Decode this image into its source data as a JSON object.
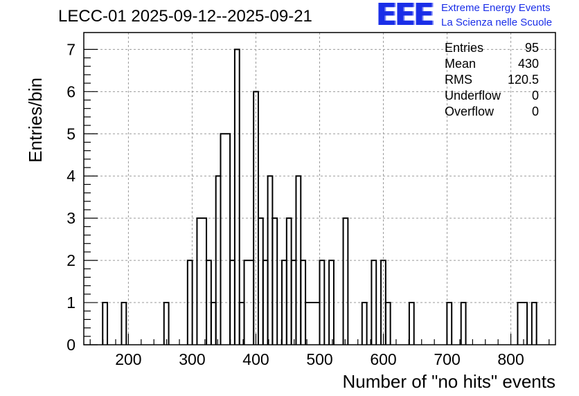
{
  "header": {
    "title": "LECC-01 2025-09-12--2025-09-21",
    "logo_text": "EEE",
    "logo_line1": "Extreme Energy Events",
    "logo_line2": "La Scienza nelle Scuole"
  },
  "stats": [
    {
      "label": "Entries",
      "value": "95"
    },
    {
      "label": "Mean",
      "value": "430"
    },
    {
      "label": "RMS",
      "value": "120.5"
    },
    {
      "label": "Underflow",
      "value": "0"
    },
    {
      "label": "Overflow",
      "value": "0"
    }
  ],
  "colors": {
    "accent": "#1a2ee8",
    "grid": "#9a9a9a",
    "line": "#000000"
  },
  "chart_data": {
    "type": "bar",
    "title": "LECC-01 2025-09-12--2025-09-21",
    "xlabel": "Number of \"no hits\" events",
    "ylabel": "Entries/bin",
    "xlim": [
      130,
      870
    ],
    "ylim": [
      0,
      7.4
    ],
    "bin_width": 7.4,
    "grid": true,
    "x_ticks": [
      200,
      300,
      400,
      500,
      600,
      700,
      800
    ],
    "y_ticks": [
      0,
      1,
      2,
      3,
      4,
      5,
      6,
      7
    ],
    "bins": [
      {
        "x0": 159.6,
        "x1": 167.0,
        "y": 1
      },
      {
        "x0": 189.2,
        "x1": 196.6,
        "y": 1
      },
      {
        "x0": 255.8,
        "x1": 263.2,
        "y": 1
      },
      {
        "x0": 292.8,
        "x1": 300.2,
        "y": 2
      },
      {
        "x0": 307.6,
        "x1": 322.4,
        "y": 3
      },
      {
        "x0": 322.4,
        "x1": 329.8,
        "y": 2
      },
      {
        "x0": 329.8,
        "x1": 337.2,
        "y": 1
      },
      {
        "x0": 337.2,
        "x1": 344.6,
        "y": 4
      },
      {
        "x0": 344.6,
        "x1": 359.4,
        "y": 5
      },
      {
        "x0": 359.4,
        "x1": 366.8,
        "y": 2
      },
      {
        "x0": 366.8,
        "x1": 374.2,
        "y": 7
      },
      {
        "x0": 374.2,
        "x1": 381.6,
        "y": 1
      },
      {
        "x0": 381.6,
        "x1": 396.4,
        "y": 2
      },
      {
        "x0": 396.4,
        "x1": 403.8,
        "y": 6
      },
      {
        "x0": 403.8,
        "x1": 411.2,
        "y": 3
      },
      {
        "x0": 411.2,
        "x1": 418.6,
        "y": 2
      },
      {
        "x0": 418.6,
        "x1": 426.0,
        "y": 4
      },
      {
        "x0": 426.0,
        "x1": 433.4,
        "y": 3
      },
      {
        "x0": 440.8,
        "x1": 448.2,
        "y": 2
      },
      {
        "x0": 448.2,
        "x1": 455.6,
        "y": 3
      },
      {
        "x0": 455.6,
        "x1": 463.0,
        "y": 2
      },
      {
        "x0": 463.0,
        "x1": 470.4,
        "y": 4
      },
      {
        "x0": 470.4,
        "x1": 477.8,
        "y": 2
      },
      {
        "x0": 477.8,
        "x1": 500.0,
        "y": 1
      },
      {
        "x0": 500.0,
        "x1": 507.4,
        "y": 2
      },
      {
        "x0": 514.8,
        "x1": 522.2,
        "y": 2
      },
      {
        "x0": 537.0,
        "x1": 544.4,
        "y": 3
      },
      {
        "x0": 566.6,
        "x1": 574.0,
        "y": 1
      },
      {
        "x0": 581.4,
        "x1": 588.8,
        "y": 2
      },
      {
        "x0": 596.2,
        "x1": 603.6,
        "y": 2
      },
      {
        "x0": 603.6,
        "x1": 611.0,
        "y": 1
      },
      {
        "x0": 640.6,
        "x1": 648.0,
        "y": 1
      },
      {
        "x0": 699.8,
        "x1": 707.2,
        "y": 1
      },
      {
        "x0": 721.9,
        "x1": 729.3,
        "y": 1
      },
      {
        "x0": 810.7,
        "x1": 825.5,
        "y": 1
      },
      {
        "x0": 832.9,
        "x1": 840.3,
        "y": 1
      }
    ]
  }
}
